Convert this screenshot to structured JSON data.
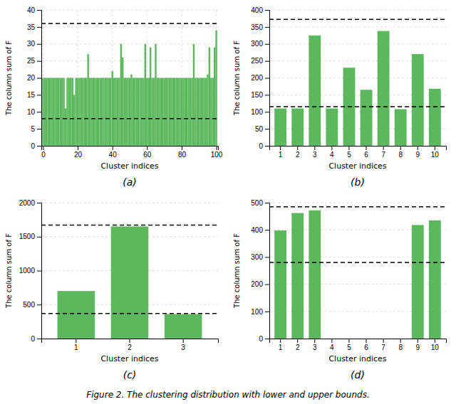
{
  "chart_data": [
    {
      "type": "bar",
      "title": "(a)",
      "xlabel": "Cluster indices",
      "ylabel": "The column sum of F",
      "x": [
        0,
        1,
        2,
        3,
        4,
        5,
        6,
        7,
        8,
        9,
        10,
        11,
        12,
        13,
        14,
        15,
        16,
        17,
        18,
        19,
        20,
        21,
        22,
        23,
        24,
        25,
        26,
        27,
        28,
        29,
        30,
        31,
        32,
        33,
        34,
        35,
        36,
        37,
        38,
        39,
        40,
        41,
        42,
        43,
        44,
        45,
        46,
        47,
        48,
        49,
        50,
        51,
        52,
        53,
        54,
        55,
        56,
        57,
        58,
        59,
        60,
        61,
        62,
        63,
        64,
        65,
        66,
        67,
        68,
        69,
        70,
        71,
        72,
        73,
        74,
        75,
        76,
        77,
        78,
        79,
        80,
        81,
        82,
        83,
        84,
        85,
        86,
        87,
        88,
        89,
        90,
        91,
        92,
        93,
        94,
        95,
        96,
        97,
        98,
        99,
        100
      ],
      "values": [
        20,
        20,
        20,
        20,
        20,
        20,
        20,
        20,
        20,
        20,
        20,
        20,
        20,
        11,
        20,
        20,
        20,
        20,
        15,
        20,
        20,
        20,
        20,
        20,
        20,
        20,
        27,
        20,
        20,
        20,
        20,
        20,
        20,
        20,
        20,
        20,
        20,
        20,
        20,
        20,
        22,
        20,
        20,
        20,
        20,
        30,
        26,
        20,
        20,
        20,
        20,
        21,
        20,
        20,
        20,
        20,
        20,
        20,
        20,
        30,
        20,
        20,
        29,
        20,
        20,
        30,
        20,
        20,
        20,
        20,
        20,
        20,
        20,
        20,
        20,
        20,
        20,
        20,
        20,
        20,
        20,
        20,
        20,
        20,
        20,
        20,
        20,
        30,
        20,
        20,
        20,
        20,
        20,
        20,
        20,
        21,
        29,
        20,
        20,
        29,
        34
      ],
      "lower": 8,
      "upper": 36,
      "xlim": [
        -1,
        101
      ],
      "xticks": [
        0,
        20,
        40,
        60,
        80,
        100
      ],
      "ylim": [
        0,
        40
      ],
      "yticks": [
        0,
        5,
        10,
        15,
        20,
        25,
        30,
        35,
        40
      ],
      "color": "#5cb85c",
      "grid": true
    },
    {
      "type": "bar",
      "title": "(b)",
      "xlabel": "Cluster indices",
      "ylabel": "The column sum of F",
      "categories": [
        1,
        2,
        3,
        4,
        5,
        6,
        7,
        8,
        9,
        10
      ],
      "values": [
        110,
        110,
        325,
        110,
        230,
        165,
        338,
        108,
        270,
        168
      ],
      "lower": 115,
      "upper": 372,
      "ylim": [
        0,
        400
      ],
      "yticks": [
        0,
        50,
        100,
        150,
        200,
        250,
        300,
        350,
        400
      ],
      "color": "#5cb85c",
      "grid": true
    },
    {
      "type": "bar",
      "title": "(c)",
      "xlabel": "Cluster indices",
      "ylabel": "The column sum of F",
      "categories": [
        1,
        2,
        3
      ],
      "values": [
        700,
        1650,
        360
      ],
      "lower": 370,
      "upper": 1670,
      "ylim": [
        0,
        2000
      ],
      "yticks": [
        0,
        500,
        1000,
        1500,
        2000
      ],
      "color": "#5cb85c",
      "grid": true
    },
    {
      "type": "bar",
      "title": "(d)",
      "xlabel": "Cluster indices",
      "ylabel": "The column sum of F",
      "categories": [
        1,
        2,
        3,
        4,
        5,
        6,
        7,
        8,
        9,
        10
      ],
      "values": [
        398,
        462,
        472,
        0,
        0,
        0,
        0,
        0,
        418,
        435
      ],
      "lower": 280,
      "upper": 485,
      "ylim": [
        0,
        500
      ],
      "yticks": [
        0,
        100,
        200,
        300,
        400,
        500
      ],
      "color": "#5cb85c",
      "grid": true
    }
  ],
  "caption": "Figure 2. The clustering distribution with lower and upper bounds."
}
